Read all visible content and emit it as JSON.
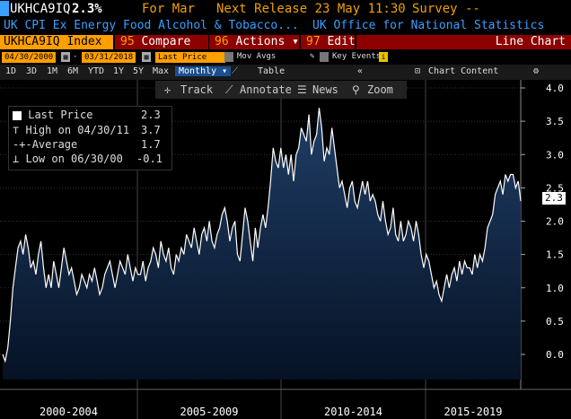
{
  "header": {
    "ticker": "UKHCA9IQ",
    "value": "2.3%",
    "for_label": "For Mar",
    "next_release": "Next Release 23 May 11:30",
    "survey": "Survey --"
  },
  "subheader": {
    "description": "UK CPI Ex Energy Food Alcohol & Tobacco...",
    "source": "UK Office for National Statistics"
  },
  "toolbar_row": {
    "security": "UKHCA9IQ Index",
    "compare_num": "95",
    "compare_label": "Compare",
    "actions_num": "96",
    "actions_label": "Actions ▾",
    "edit_num": "97",
    "edit_label": "Edit ▾",
    "chart_type": "Line Chart"
  },
  "date_row": {
    "start_date": "04/30/2000",
    "end_date": "03/31/2018",
    "field": "Last Price",
    "mov_avgs": "Mov Avgs",
    "key_events": "Key Events"
  },
  "range_row": {
    "ranges": [
      "1D",
      "3D",
      "1M",
      "6M",
      "YTD",
      "1Y",
      "5Y",
      "Max"
    ],
    "period": "Monthly ▾",
    "table": "Table",
    "chart_content": "Chart Content"
  },
  "chart_tools": {
    "track": "Track",
    "annotate": "Annotate",
    "news": "News",
    "zoom": "Zoom"
  },
  "legend": {
    "last_price_label": "Last Price",
    "last_price_value": "2.3",
    "high_label": "High on 04/30/11",
    "high_value": "3.7",
    "avg_label": "Average",
    "avg_value": "1.7",
    "low_label": "Low on 06/30/00",
    "low_value": "-0.1"
  },
  "colors": {
    "accent_orange": "#ff9f00",
    "header_blue": "#39a0ff",
    "button_red": "#8c0000",
    "area_fill_top": "#1f3e66",
    "area_fill_bottom": "#061225"
  },
  "chart_data": {
    "type": "area",
    "ylim": [
      -0.5,
      4.0
    ],
    "yticks": [
      "4.0",
      "3.5",
      "3.0",
      "2.5",
      "2.0",
      "1.5",
      "1.0",
      "0.5",
      "0.0"
    ],
    "xlabels": [
      "2000-2004",
      "2005-2009",
      "2010-2014",
      "2015-2019"
    ],
    "last_value_label": "2.3",
    "x_start": "2000-04",
    "x_end": "2018-03",
    "series": [
      {
        "values": [
          0.0,
          -0.1,
          0.1,
          0.5,
          1.0,
          1.3,
          1.6,
          1.7,
          1.5,
          1.8,
          1.6,
          1.3,
          1.4,
          1.2,
          1.5,
          1.7,
          1.3,
          1.0,
          1.2,
          1.0,
          1.4,
          1.2,
          1.0,
          1.3,
          1.6,
          1.4,
          1.2,
          1.3,
          1.1,
          0.9,
          1.0,
          1.2,
          1.1,
          1.0,
          1.2,
          1.1,
          1.3,
          1.1,
          0.9,
          1.0,
          1.2,
          1.3,
          1.4,
          1.2,
          1.0,
          1.2,
          1.4,
          1.3,
          1.2,
          1.5,
          1.3,
          1.1,
          1.3,
          1.2,
          1.2,
          1.4,
          1.1,
          1.3,
          1.4,
          1.6,
          1.5,
          1.3,
          1.7,
          1.5,
          1.4,
          1.6,
          1.3,
          1.2,
          1.5,
          1.4,
          1.6,
          1.5,
          1.8,
          1.7,
          1.6,
          1.9,
          1.7,
          1.5,
          1.8,
          1.9,
          1.7,
          2.0,
          1.7,
          1.6,
          1.8,
          1.9,
          2.1,
          2.2,
          2.0,
          1.7,
          1.9,
          2.0,
          1.5,
          1.4,
          1.8,
          2.2,
          2.0,
          1.7,
          1.4,
          1.9,
          1.6,
          1.9,
          2.1,
          1.9,
          2.2,
          2.6,
          3.1,
          2.9,
          2.8,
          3.1,
          2.8,
          3.0,
          2.7,
          3.0,
          2.6,
          3.0,
          3.1,
          3.4,
          3.3,
          3.2,
          3.6,
          3.0,
          3.2,
          3.3,
          3.7,
          3.4,
          2.9,
          3.1,
          3.0,
          3.4,
          3.1,
          2.8,
          2.5,
          2.6,
          2.4,
          2.2,
          2.5,
          2.6,
          2.3,
          2.2,
          2.4,
          2.6,
          2.4,
          2.6,
          2.3,
          2.4,
          2.3,
          2.1,
          2.0,
          2.3,
          2.0,
          1.8,
          1.9,
          2.2,
          1.8,
          1.7,
          2.0,
          1.7,
          1.8,
          2.0,
          1.9,
          1.7,
          2.0,
          1.8,
          1.5,
          1.3,
          1.5,
          1.4,
          1.2,
          1.0,
          1.1,
          0.9,
          0.8,
          1.0,
          1.2,
          1.0,
          1.2,
          1.3,
          1.1,
          1.4,
          1.2,
          1.4,
          1.3,
          1.3,
          1.2,
          1.5,
          1.3,
          1.5,
          1.4,
          1.6,
          1.9,
          2.0,
          2.1,
          2.4,
          2.5,
          2.6,
          2.4,
          2.7,
          2.6,
          2.7,
          2.7,
          2.5,
          2.6,
          2.3
        ]
      }
    ]
  }
}
